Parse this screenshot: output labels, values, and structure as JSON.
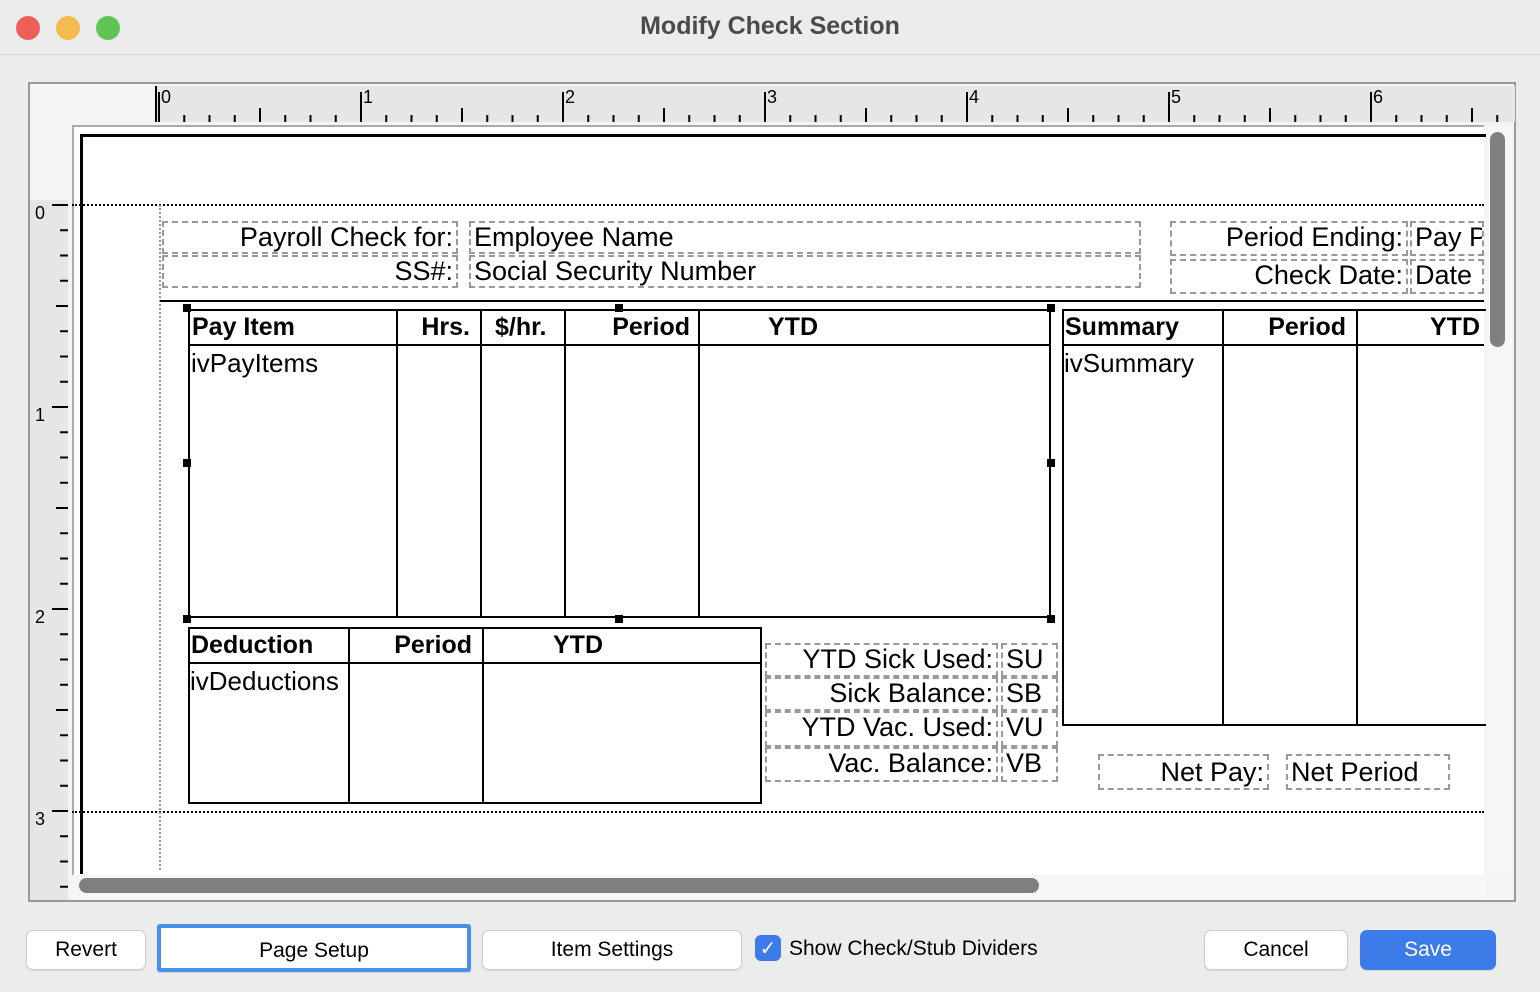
{
  "window": {
    "title": "Modify Check Section"
  },
  "ruler": {
    "h": [
      "0",
      "1",
      "2",
      "3",
      "4",
      "5",
      "6"
    ],
    "v": [
      "0",
      "1",
      "2",
      "3"
    ]
  },
  "header_fields": {
    "payroll_label": "Payroll Check for:",
    "employee_name": "Employee Name",
    "ss_label": "SS#:",
    "ss_value": "Social Security Number",
    "period_ending_label": "Period Ending:",
    "period_ending_value": "Pay P",
    "check_date_label": "Check Date:",
    "check_date_value": "Date"
  },
  "pay_table": {
    "headers": [
      "Pay Item",
      "Hrs.",
      "$/hr.",
      "Period",
      "YTD"
    ],
    "body": "ivPayItems"
  },
  "summary_table": {
    "headers": [
      "Summary",
      "Period",
      "YTD"
    ],
    "body": "ivSummary"
  },
  "deduction_table": {
    "headers": [
      "Deduction",
      "Period",
      "YTD"
    ],
    "body": "ivDeductions"
  },
  "balances": [
    {
      "label": "YTD Sick Used:",
      "value": "SU"
    },
    {
      "label": "Sick Balance:",
      "value": "SB"
    },
    {
      "label": "YTD Vac. Used:",
      "value": "VU"
    },
    {
      "label": "Vac. Balance:",
      "value": "VB"
    }
  ],
  "net": {
    "label": "Net Pay:",
    "value": "Net Period"
  },
  "buttons": {
    "revert": "Revert",
    "page_setup": "Page Setup",
    "item_settings": "Item Settings",
    "cancel": "Cancel",
    "save": "Save"
  },
  "checkbox": {
    "label": "Show Check/Stub Dividers",
    "checked": true
  },
  "colors": {
    "accent": "#3d7ce8",
    "close": "#ee5f57",
    "minimize": "#f5bd4f",
    "zoom": "#5fc454"
  }
}
